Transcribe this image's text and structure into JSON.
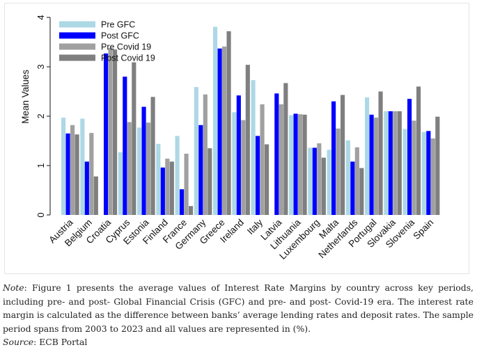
{
  "chart_data": {
    "type": "bar",
    "ylabel": "Mean Values",
    "ylim": [
      0,
      4
    ],
    "yticks": [
      0,
      1,
      2,
      3,
      4
    ],
    "grid": false,
    "legend_position": "top-left",
    "categories": [
      "Austria",
      "Belgium",
      "Croatia",
      "Cyprus",
      "Estonia",
      "Finland",
      "France",
      "Germany",
      "Greece",
      "Ireland",
      "Italy",
      "Latvia",
      "Lithuania",
      "Luxembourg",
      "Malta",
      "Netherlands",
      "Portugal",
      "Slovakia",
      "Slovenia",
      "Spain"
    ],
    "series": [
      {
        "name": "Pre GFC",
        "color": "#add8e6",
        "values": [
          1.97,
          1.95,
          null,
          1.27,
          1.77,
          1.44,
          1.6,
          2.59,
          3.81,
          2.08,
          2.73,
          null,
          2.02,
          1.36,
          1.32,
          1.51,
          2.38,
          2.1,
          1.74,
          1.68
        ]
      },
      {
        "name": "Post GFC",
        "color": "#0000ff",
        "values": [
          1.65,
          1.08,
          3.27,
          2.8,
          2.19,
          0.96,
          0.52,
          1.82,
          3.37,
          2.42,
          1.6,
          2.46,
          2.05,
          1.36,
          2.3,
          1.08,
          2.03,
          2.1,
          2.35,
          1.7
        ]
      },
      {
        "name": "Pre Covid 19",
        "color": "#a0a0a0",
        "values": [
          1.82,
          1.66,
          3.38,
          1.88,
          1.87,
          1.14,
          1.24,
          2.44,
          3.41,
          1.92,
          2.24,
          2.24,
          2.04,
          1.45,
          1.75,
          1.37,
          1.97,
          2.1,
          1.91,
          1.55
        ]
      },
      {
        "name": "Post Covid 19",
        "color": "#7f7f7f",
        "values": [
          1.63,
          0.78,
          3.35,
          3.09,
          2.39,
          1.08,
          0.18,
          1.35,
          3.72,
          3.04,
          1.43,
          2.67,
          2.03,
          1.16,
          2.43,
          0.95,
          2.5,
          2.1,
          2.6,
          1.99
        ]
      }
    ]
  },
  "note": {
    "label": "Note",
    "text": ": Figure 1 presents the average values of Interest Rate Margins by country across key periods, including pre- and post- Global Financial Crisis (GFC) and pre- and post- Covid-19 era. The interest rate margin is calculated as the difference between banks’ average lending rates and deposit rates. The sample period spans from 2003 to 2023 and all values are represented in (%)."
  },
  "source": {
    "label": "Source",
    "text": ": ECB Portal"
  }
}
